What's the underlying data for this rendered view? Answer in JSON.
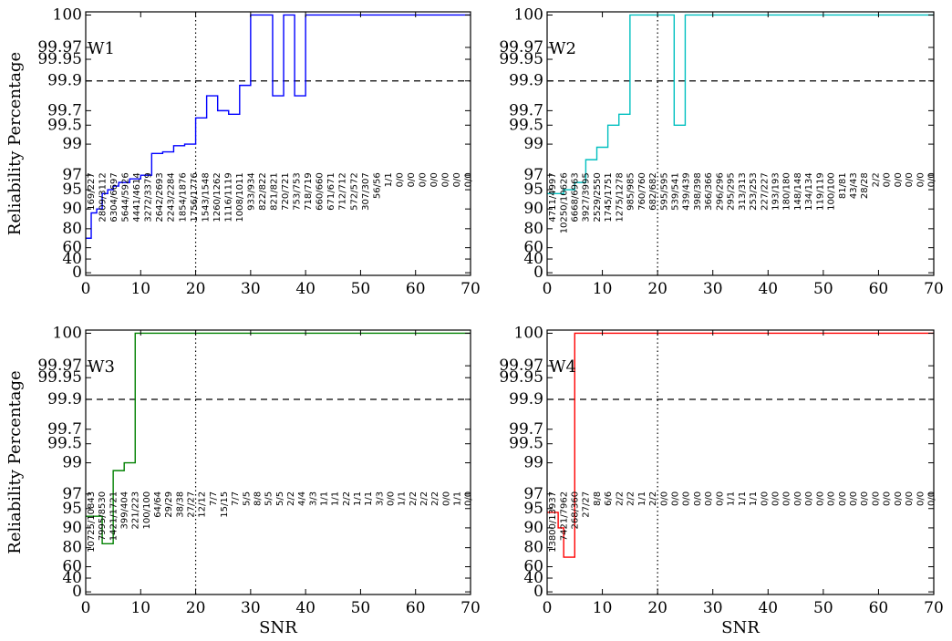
{
  "chart_data": [
    {
      "type": "line",
      "panel_label": "W1",
      "ylabel": "Reliability Percentage",
      "xlabel": "",
      "color": "#0000ff",
      "x_ticks": [
        "0",
        "10",
        "20",
        "30",
        "40",
        "50",
        "60",
        "70"
      ],
      "y_ticks": [
        "0",
        "40",
        "60",
        "80",
        "90",
        "95",
        "97",
        "99",
        "99.5",
        "99.7",
        "99.9",
        "99.95",
        "99.97",
        "100"
      ],
      "xlim": [
        0,
        70
      ],
      "ylim": [
        0,
        100
      ],
      "vline_x": 20,
      "hline_y": 99.9,
      "grid": false,
      "x": [
        0,
        1,
        2,
        3,
        4,
        5,
        6,
        7,
        8,
        9,
        10,
        11,
        12,
        13,
        14,
        15,
        16,
        17,
        18,
        19,
        20,
        21,
        22,
        23,
        24,
        25,
        26,
        27,
        28,
        29,
        30,
        31,
        32,
        33,
        34,
        35,
        36,
        37,
        38,
        39,
        40,
        41,
        42,
        43,
        44,
        45,
        46,
        47,
        48,
        49,
        50,
        51,
        52,
        53,
        54,
        55,
        56,
        57,
        58,
        59,
        60,
        61,
        62,
        63,
        64,
        65,
        66,
        67,
        68,
        69,
        70
      ],
      "values": [
        70,
        88,
        90,
        94,
        95,
        95.5,
        96,
        96,
        96.5,
        96.5,
        97,
        97,
        98.4,
        98.4,
        98.5,
        98.5,
        98.9,
        98.9,
        99,
        99,
        99.6,
        99.6,
        99.8,
        99.8,
        99.7,
        99.7,
        99.65,
        99.65,
        99.87,
        99.87,
        100,
        100,
        100,
        100,
        99.8,
        99.8,
        100,
        100,
        99.8,
        99.8,
        100,
        100,
        100,
        100,
        100,
        100,
        100,
        100,
        100,
        100,
        100,
        100,
        100,
        100,
        100,
        100,
        100,
        100,
        100,
        100,
        100,
        100,
        100,
        100,
        100,
        100,
        100,
        100,
        100,
        100,
        100
      ],
      "annotations": [
        "169/227",
        "2809/3112",
        "6304/6697",
        "5644/5926",
        "4441/4614",
        "3272/3379",
        "2642/2693",
        "2243/2284",
        "1854/1876",
        "1756/1776",
        "1543/1548",
        "1260/1262",
        "1116/1119",
        "1008/1011",
        "933/934",
        "822/822",
        "821/821",
        "720/721",
        "753/753",
        "718/719",
        "660/660",
        "671/671",
        "712/712",
        "572/572",
        "307/307",
        "56/56",
        "1/1",
        "0/0",
        "0/0",
        "0/0",
        "0/0",
        "0/0",
        "0/0",
        "0/0"
      ]
    },
    {
      "type": "line",
      "panel_label": "W2",
      "ylabel": "",
      "xlabel": "",
      "color": "#00bfbf",
      "x_ticks": [
        "0",
        "10",
        "20",
        "30",
        "40",
        "50",
        "60",
        "70"
      ],
      "y_ticks": [
        "0",
        "40",
        "60",
        "80",
        "90",
        "95",
        "97",
        "99",
        "99.5",
        "99.7",
        "99.9",
        "99.95",
        "99.97",
        "100"
      ],
      "xlim": [
        0,
        70
      ],
      "ylim": [
        0,
        100
      ],
      "vline_x": 20,
      "hline_y": 99.9,
      "grid": false,
      "x": [
        0,
        1,
        2,
        3,
        4,
        5,
        6,
        7,
        8,
        9,
        10,
        11,
        12,
        13,
        14,
        15,
        16,
        17,
        18,
        19,
        20,
        21,
        22,
        23,
        24,
        25,
        26,
        27,
        28,
        29,
        30,
        31,
        32,
        33,
        34,
        35,
        36,
        37,
        38,
        39,
        40,
        41,
        42,
        43,
        44,
        45,
        46,
        47,
        48,
        49,
        50,
        51,
        52,
        53,
        54,
        55,
        56,
        57,
        58,
        59,
        60,
        61,
        62,
        63,
        64,
        65,
        66,
        67,
        68,
        69,
        70
      ],
      "values": [
        94,
        94,
        94,
        95,
        95,
        96,
        96,
        98,
        98,
        98.8,
        98.8,
        99.5,
        99.5,
        99.65,
        99.65,
        100,
        100,
        100,
        100,
        100,
        100,
        100,
        100,
        99.5,
        99.5,
        100,
        100,
        100,
        100,
        100,
        100,
        100,
        100,
        100,
        100,
        100,
        100,
        100,
        100,
        100,
        100,
        100,
        100,
        100,
        100,
        100,
        100,
        100,
        100,
        100,
        100,
        100,
        100,
        100,
        100,
        100,
        100,
        100,
        100,
        100,
        100,
        100,
        100,
        100,
        100,
        100,
        100,
        100,
        100,
        100,
        100
      ],
      "annotations": [
        "4711/4997",
        "10250/10626",
        "6668/6963",
        "3927/3995",
        "2529/2550",
        "1745/1751",
        "1275/1278",
        "985/985",
        "760/760",
        "682/682",
        "595/595",
        "539/541",
        "439/439",
        "398/398",
        "366/366",
        "296/296",
        "295/295",
        "313/313",
        "253/253",
        "227/227",
        "193/193",
        "180/180",
        "148/148",
        "134/134",
        "119/119",
        "100/100",
        "81/81",
        "43/43",
        "28/28",
        "2/2",
        "0/0",
        "0/0",
        "0/0",
        "0/0",
        "0/0"
      ]
    },
    {
      "type": "line",
      "panel_label": "W3",
      "ylabel": "Reliability Percentage",
      "xlabel": "SNR",
      "color": "#008000",
      "x_ticks": [
        "0",
        "10",
        "20",
        "30",
        "40",
        "50",
        "60",
        "70"
      ],
      "y_ticks": [
        "0",
        "40",
        "60",
        "80",
        "90",
        "95",
        "97",
        "99",
        "99.5",
        "99.7",
        "99.9",
        "99.95",
        "99.97",
        "100"
      ],
      "xlim": [
        0,
        70
      ],
      "ylim": [
        0,
        100
      ],
      "vline_x": 20,
      "hline_y": 99.9,
      "grid": false,
      "x": [
        0,
        1,
        2,
        3,
        4,
        5,
        6,
        7,
        8,
        9,
        10,
        11,
        12,
        13,
        14,
        15,
        16,
        17,
        18,
        19,
        20,
        21,
        22,
        23,
        24,
        25,
        26,
        27,
        28,
        29,
        30,
        31,
        32,
        33,
        34,
        35,
        36,
        37,
        38,
        39,
        40,
        41,
        42,
        43,
        44,
        45,
        46,
        47,
        48,
        49,
        50,
        51,
        52,
        53,
        54,
        55,
        56,
        57,
        58,
        59,
        60,
        61,
        62,
        63,
        64,
        65,
        66,
        67,
        68,
        69,
        70
      ],
      "values": [
        93,
        93,
        93,
        82,
        82,
        98.5,
        98.5,
        99,
        99,
        100,
        100,
        100,
        100,
        100,
        100,
        100,
        100,
        100,
        100,
        100,
        100,
        100,
        100,
        100,
        100,
        100,
        100,
        100,
        100,
        100,
        100,
        100,
        100,
        100,
        100,
        100,
        100,
        100,
        100,
        100,
        100,
        100,
        100,
        100,
        100,
        100,
        100,
        100,
        100,
        100,
        100,
        100,
        100,
        100,
        100,
        100,
        100,
        100,
        100,
        100,
        100,
        100,
        100,
        100,
        100,
        100,
        100,
        100,
        100,
        100,
        100
      ],
      "annotations": [
        "10725/10843",
        "7995/8530",
        "1421/1721",
        "399/404",
        "221/223",
        "100/100",
        "64/64",
        "29/29",
        "38/38",
        "27/27",
        "12/12",
        "7/7",
        "15/15",
        "7/7",
        "5/5",
        "8/8",
        "5/5",
        "5/5",
        "2/2",
        "4/4",
        "3/3",
        "1/1",
        "1/1",
        "2/2",
        "1/1",
        "1/1",
        "3/3",
        "0/0",
        "1/1",
        "2/2",
        "2/2",
        "2/2",
        "0/0",
        "1/1",
        "0/0"
      ]
    },
    {
      "type": "line",
      "panel_label": "W4",
      "ylabel": "",
      "xlabel": "SNR",
      "color": "#ff0000",
      "x_ticks": [
        "0",
        "10",
        "20",
        "30",
        "40",
        "50",
        "60",
        "70"
      ],
      "y_ticks": [
        "0",
        "40",
        "60",
        "80",
        "90",
        "95",
        "97",
        "99",
        "99.5",
        "99.7",
        "99.9",
        "99.95",
        "99.97",
        "100"
      ],
      "xlim": [
        0,
        70
      ],
      "ylim": [
        0,
        100
      ],
      "vline_x": 20,
      "hline_y": 99.9,
      "grid": false,
      "x": [
        0,
        1,
        2,
        3,
        4,
        5,
        6,
        7,
        8,
        9,
        10,
        11,
        12,
        13,
        14,
        15,
        16,
        17,
        18,
        19,
        20,
        21,
        22,
        23,
        24,
        25,
        26,
        27,
        28,
        29,
        30,
        31,
        32,
        33,
        34,
        35,
        36,
        37,
        38,
        39,
        40,
        41,
        42,
        43,
        44,
        45,
        46,
        47,
        48,
        49,
        50,
        51,
        52,
        53,
        54,
        55,
        56,
        57,
        58,
        59,
        60,
        61,
        62,
        63,
        64,
        65,
        66,
        67,
        68,
        69,
        70
      ],
      "values": [
        94,
        94,
        90,
        70,
        70,
        100,
        100,
        100,
        100,
        100,
        100,
        100,
        100,
        100,
        100,
        100,
        100,
        100,
        100,
        100,
        100,
        100,
        100,
        100,
        100,
        100,
        100,
        100,
        100,
        100,
        100,
        100,
        100,
        100,
        100,
        100,
        100,
        100,
        100,
        100,
        100,
        100,
        100,
        100,
        100,
        100,
        100,
        100,
        100,
        100,
        100,
        100,
        100,
        100,
        100,
        100,
        100,
        100,
        100,
        100,
        100,
        100,
        100,
        100,
        100,
        100,
        100,
        100,
        100,
        100,
        100
      ],
      "annotations": [
        "13800/13937",
        "7421/7962",
        "268/360",
        "27/27",
        "8/8",
        "6/6",
        "2/2",
        "2/2",
        "1/1",
        "2/2",
        "0/0",
        "0/0",
        "0/0",
        "0/0",
        "0/0",
        "0/0",
        "1/1",
        "1/1",
        "1/1",
        "0/0",
        "0/0",
        "0/0",
        "0/0",
        "0/0",
        "0/0",
        "0/0",
        "0/0",
        "0/0",
        "0/0",
        "0/0",
        "0/0",
        "0/0",
        "0/0",
        "0/0",
        "0/0"
      ]
    }
  ]
}
